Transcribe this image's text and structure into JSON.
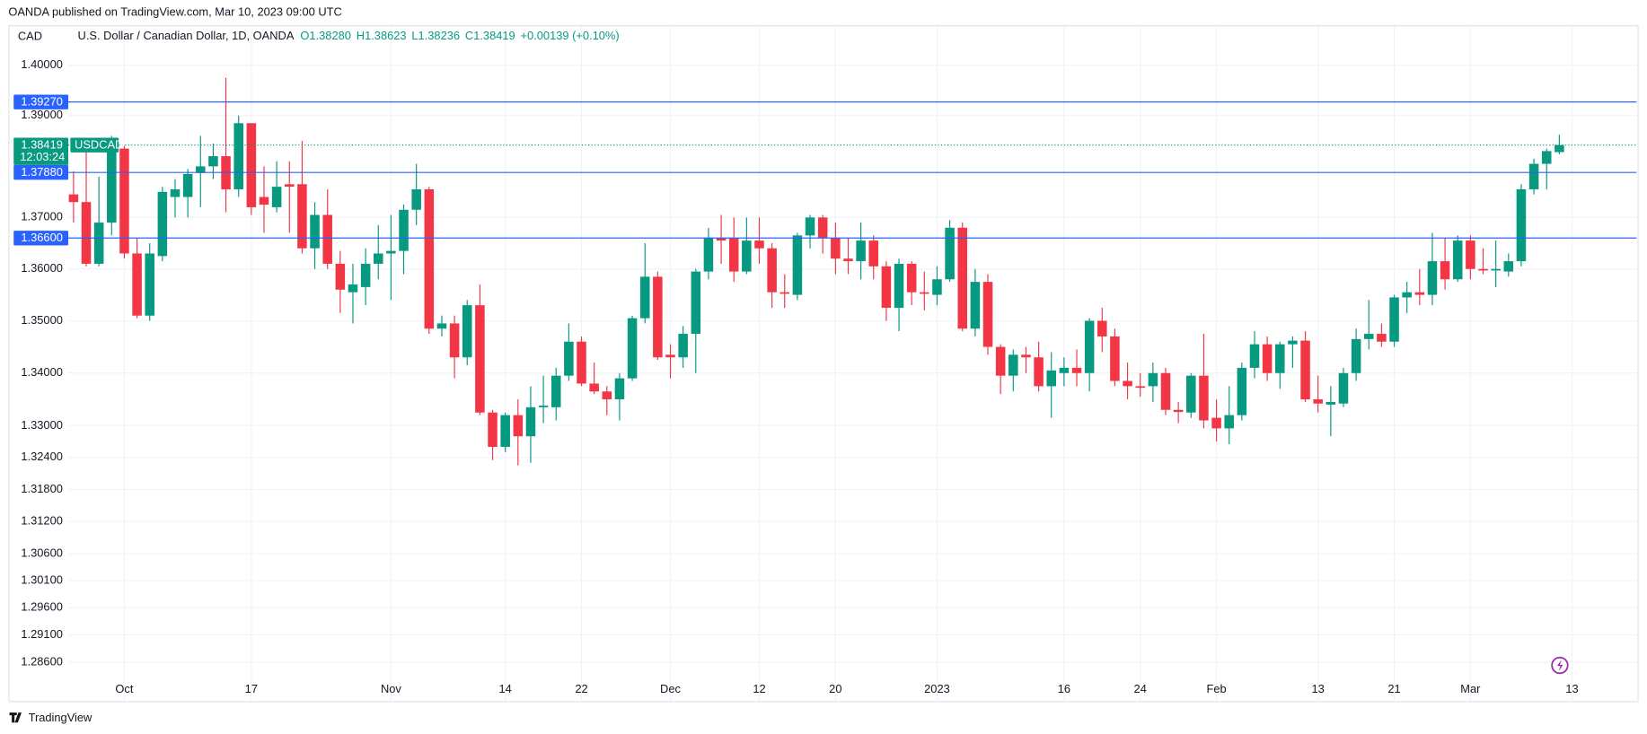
{
  "chart_data": {
    "type": "candlestick",
    "header": "OANDA published on TradingView.com, Mar 10, 2023 09:00 UTC",
    "currency": "CAD",
    "title": "U.S. Dollar / Canadian Dollar, 1D, OANDA",
    "legend": [
      "O1.38280",
      "H1.38623",
      "L1.38236",
      "C1.38419",
      "+0.00139 (+0.10%)"
    ],
    "symbol": "USDCAD",
    "countdown": "12:03:24",
    "last_price": {
      "value": 1.38419,
      "label": "1.38419"
    },
    "brand": "TradingView",
    "log_scale": true,
    "grid": true,
    "up_color": "#089981",
    "down_color": "#f23645",
    "line_color": "#2962ff",
    "hlines": [
      {
        "value": 1.3927,
        "label": "1.39270"
      },
      {
        "value": 1.3788,
        "label": "1.37880"
      },
      {
        "value": 1.366,
        "label": "1.36600"
      }
    ],
    "ylim": [
      1.2833,
      1.408
    ],
    "yticks": [
      {
        "value": 1.4,
        "label": "1.40000"
      },
      {
        "value": 1.39,
        "label": "1.39000"
      },
      {
        "value": 1.37,
        "label": "1.37000"
      },
      {
        "value": 1.36,
        "label": "1.36000"
      },
      {
        "value": 1.35,
        "label": "1.35000"
      },
      {
        "value": 1.34,
        "label": "1.34000"
      },
      {
        "value": 1.33,
        "label": "1.33000"
      },
      {
        "value": 1.324,
        "label": "1.32400"
      },
      {
        "value": 1.318,
        "label": "1.31800"
      },
      {
        "value": 1.312,
        "label": "1.31200"
      },
      {
        "value": 1.306,
        "label": "1.30600"
      },
      {
        "value": 1.301,
        "label": "1.30100"
      },
      {
        "value": 1.296,
        "label": "1.29600"
      },
      {
        "value": 1.291,
        "label": "1.29100"
      },
      {
        "value": 1.286,
        "label": "1.28600"
      }
    ],
    "xticks": [
      {
        "value": 4,
        "label": "Oct"
      },
      {
        "value": 14,
        "label": "17"
      },
      {
        "value": 25,
        "label": "Nov"
      },
      {
        "value": 34,
        "label": "14"
      },
      {
        "value": 40,
        "label": "22"
      },
      {
        "value": 47,
        "label": "Dec"
      },
      {
        "value": 54,
        "label": "12"
      },
      {
        "value": 60,
        "label": "20"
      },
      {
        "value": 68,
        "label": "2023"
      },
      {
        "value": 78,
        "label": "16"
      },
      {
        "value": 84,
        "label": "24"
      },
      {
        "value": 90,
        "label": "Feb"
      },
      {
        "value": 98,
        "label": "13"
      },
      {
        "value": 104,
        "label": "21"
      },
      {
        "value": 110,
        "label": "Mar"
      },
      {
        "value": 118,
        "label": "13"
      }
    ],
    "open": [
      1.3745,
      1.373,
      1.361,
      1.369,
      1.3835,
      1.363,
      1.351,
      1.3625,
      1.374,
      1.374,
      1.3787,
      1.38,
      1.382,
      1.3755,
      1.3885,
      1.374,
      1.372,
      1.3765,
      1.3765,
      1.364,
      1.3705,
      1.361,
      1.3555,
      1.3565,
      1.361,
      1.363,
      1.3635,
      1.3715,
      1.3755,
      1.3485,
      1.3495,
      1.343,
      1.353,
      1.3325,
      1.326,
      1.332,
      1.328,
      1.3335,
      1.3335,
      1.3395,
      1.346,
      1.338,
      1.3365,
      1.335,
      1.339,
      1.3505,
      1.3585,
      1.3435,
      1.343,
      1.3475,
      1.3595,
      1.366,
      1.366,
      1.3595,
      1.3655,
      1.364,
      1.3555,
      1.355,
      1.3665,
      1.37,
      1.366,
      1.362,
      1.3615,
      1.3655,
      1.3605,
      1.3525,
      1.361,
      1.3555,
      1.355,
      1.358,
      1.368,
      1.3485,
      1.3575,
      1.345,
      1.3395,
      1.3435,
      1.343,
      1.3375,
      1.34,
      1.341,
      1.34,
      1.35,
      1.347,
      1.3385,
      1.3375,
      1.3375,
      1.34,
      1.333,
      1.3325,
      1.3395,
      1.3315,
      1.3295,
      1.332,
      1.341,
      1.3455,
      1.34,
      1.3455,
      1.3462,
      1.335,
      1.334,
      1.3342,
      1.34,
      1.3465,
      1.3475,
      1.346,
      1.3545,
      1.3555,
      1.355,
      1.3615,
      1.358,
      1.3655,
      1.36,
      1.3597,
      1.3595,
      1.3615,
      1.3755,
      1.3805,
      1.3828
    ],
    "high": [
      1.379,
      1.383,
      1.378,
      1.386,
      1.384,
      1.366,
      1.365,
      1.376,
      1.3775,
      1.3795,
      1.386,
      1.3845,
      1.3975,
      1.39,
      1.3885,
      1.38,
      1.381,
      1.381,
      1.385,
      1.373,
      1.3755,
      1.3635,
      1.361,
      1.364,
      1.3685,
      1.3705,
      1.3725,
      1.3805,
      1.376,
      1.351,
      1.351,
      1.354,
      1.357,
      1.333,
      1.3325,
      1.335,
      1.3375,
      1.3395,
      1.341,
      1.3495,
      1.347,
      1.342,
      1.3375,
      1.34,
      1.351,
      1.365,
      1.3595,
      1.3455,
      1.349,
      1.36,
      1.368,
      1.3705,
      1.37,
      1.37,
      1.37,
      1.365,
      1.359,
      1.367,
      1.3705,
      1.3705,
      1.369,
      1.366,
      1.369,
      1.3665,
      1.3615,
      1.362,
      1.3615,
      1.3595,
      1.3605,
      1.3695,
      1.369,
      1.36,
      1.359,
      1.3455,
      1.3445,
      1.345,
      1.346,
      1.344,
      1.343,
      1.3445,
      1.3505,
      1.3525,
      1.3485,
      1.342,
      1.34,
      1.342,
      1.341,
      1.3345,
      1.34,
      1.3475,
      1.335,
      1.3375,
      1.342,
      1.348,
      1.347,
      1.346,
      1.347,
      1.348,
      1.3395,
      1.3375,
      1.341,
      1.3485,
      1.354,
      1.3495,
      1.355,
      1.3575,
      1.36,
      1.367,
      1.366,
      1.3665,
      1.3665,
      1.364,
      1.3655,
      1.363,
      1.3765,
      1.3815,
      1.3835,
      1.38623
    ],
    "low": [
      1.369,
      1.3605,
      1.3605,
      1.3665,
      1.362,
      1.3505,
      1.35,
      1.3615,
      1.37,
      1.37,
      1.372,
      1.3775,
      1.371,
      1.374,
      1.3705,
      1.367,
      1.371,
      1.367,
      1.363,
      1.36,
      1.36,
      1.3515,
      1.3495,
      1.353,
      1.358,
      1.354,
      1.359,
      1.3685,
      1.3475,
      1.347,
      1.339,
      1.3415,
      1.332,
      1.3235,
      1.325,
      1.3225,
      1.323,
      1.3305,
      1.331,
      1.3385,
      1.3375,
      1.336,
      1.332,
      1.331,
      1.3385,
      1.3495,
      1.3425,
      1.339,
      1.341,
      1.34,
      1.358,
      1.361,
      1.3575,
      1.359,
      1.361,
      1.3525,
      1.3525,
      1.354,
      1.364,
      1.363,
      1.359,
      1.359,
      1.358,
      1.358,
      1.35,
      1.348,
      1.353,
      1.352,
      1.353,
      1.3575,
      1.348,
      1.347,
      1.3435,
      1.336,
      1.3365,
      1.34,
      1.3365,
      1.3315,
      1.3375,
      1.3375,
      1.3365,
      1.344,
      1.3375,
      1.335,
      1.3355,
      1.3345,
      1.332,
      1.3305,
      1.3315,
      1.3295,
      1.327,
      1.3265,
      1.331,
      1.339,
      1.3385,
      1.337,
      1.341,
      1.3345,
      1.3325,
      1.328,
      1.3335,
      1.3385,
      1.3445,
      1.345,
      1.345,
      1.3515,
      1.353,
      1.353,
      1.356,
      1.3575,
      1.358,
      1.359,
      1.3565,
      1.3585,
      1.3605,
      1.3745,
      1.3755,
      1.38236
    ],
    "close": [
      1.373,
      1.361,
      1.369,
      1.384,
      1.363,
      1.351,
      1.363,
      1.375,
      1.3755,
      1.3785,
      1.38,
      1.382,
      1.3755,
      1.3885,
      1.372,
      1.3725,
      1.376,
      1.376,
      1.364,
      1.3705,
      1.361,
      1.356,
      1.357,
      1.361,
      1.363,
      1.3635,
      1.3715,
      1.3755,
      1.3485,
      1.3495,
      1.343,
      1.353,
      1.3325,
      1.326,
      1.332,
      1.328,
      1.3335,
      1.3338,
      1.3395,
      1.346,
      1.338,
      1.3365,
      1.335,
      1.339,
      1.3505,
      1.3585,
      1.343,
      1.343,
      1.3475,
      1.3595,
      1.366,
      1.3655,
      1.3595,
      1.3655,
      1.364,
      1.3555,
      1.3552,
      1.3665,
      1.37,
      1.366,
      1.362,
      1.3615,
      1.3655,
      1.3605,
      1.3525,
      1.361,
      1.3555,
      1.3552,
      1.358,
      1.368,
      1.3485,
      1.3575,
      1.345,
      1.3395,
      1.3435,
      1.343,
      1.3375,
      1.3405,
      1.341,
      1.34,
      1.35,
      1.347,
      1.3385,
      1.3375,
      1.3372,
      1.34,
      1.333,
      1.3326,
      1.3395,
      1.331,
      1.3295,
      1.332,
      1.341,
      1.3455,
      1.34,
      1.3455,
      1.3462,
      1.335,
      1.3342,
      1.3345,
      1.34,
      1.3465,
      1.3475,
      1.346,
      1.3545,
      1.3555,
      1.355,
      1.3615,
      1.358,
      1.3655,
      1.36,
      1.3597,
      1.36,
      1.3615,
      1.3755,
      1.3805,
      1.383,
      1.38419
    ]
  }
}
